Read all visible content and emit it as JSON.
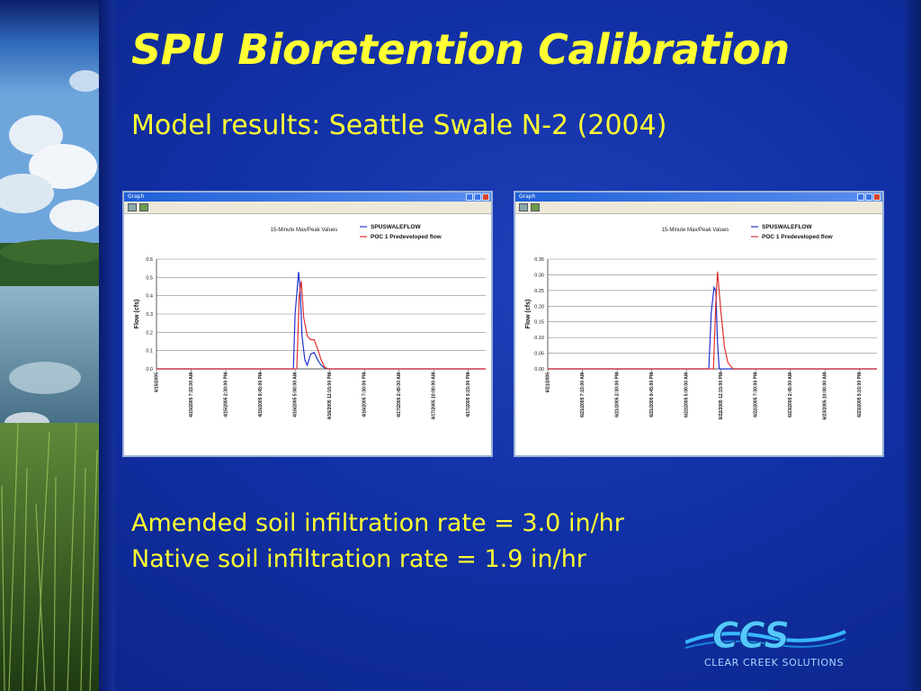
{
  "slide": {
    "title": "SPU Bioretention Calibration",
    "subtitle": "Model results: Seattle Swale N-2 (2004)",
    "rates": [
      "Amended soil infiltration rate = 3.0 in/hr",
      "Native soil infiltration rate = 1.9 in/hr"
    ],
    "logo_text": "CLEAR CREEK SOLUTIONS",
    "logo_mark": "CCS"
  },
  "colors": {
    "background": "#1230a6",
    "title": "#ffff33",
    "series_1": "#2233cc",
    "series_2": "#e03030"
  },
  "chart_data": [
    {
      "type": "line",
      "window_title": "Graph",
      "title": "15-Minute Max/Peak Values",
      "ylabel": "Flow (cfs)",
      "xlabel": "",
      "ylim": [
        0,
        0.6
      ],
      "yticks": [
        "0.0",
        "0.1",
        "0.2",
        "0.3",
        "0.4",
        "0.5",
        "0.6"
      ],
      "grid": true,
      "legend": "top-right",
      "xticks": [
        "4/15/2005",
        "4/15/2005 7:15:00 AM",
        "4/15/2005 2:30:00 PM",
        "4/15/2005 9:45:00 PM",
        "4/16/2005 5:00:00 AM",
        "4/16/2005 12:15:00 PM",
        "4/16/2005 7:30:00 PM",
        "4/17/2005 2:45:00 AM",
        "4/17/2005 10:00:00 AM",
        "4/17/2005 5:15:00 PM"
      ],
      "x_range": [
        0,
        9.5
      ],
      "series": [
        {
          "name": "SPUSWALEFLOW",
          "color": "#2233cc",
          "x": [
            0,
            3.95,
            4.0,
            4.1,
            4.15,
            4.2,
            4.28,
            4.35,
            4.45,
            4.55,
            4.65,
            4.75,
            4.85,
            4.95,
            9.5
          ],
          "y": [
            0,
            0,
            0.3,
            0.53,
            0.42,
            0.18,
            0.05,
            0.02,
            0.08,
            0.09,
            0.05,
            0.02,
            0.005,
            0,
            0
          ]
        },
        {
          "name": "POC 1 Predeveloped flow",
          "color": "#e03030",
          "x": [
            0,
            4.05,
            4.12,
            4.18,
            4.25,
            4.35,
            4.45,
            4.55,
            4.65,
            4.75,
            4.85,
            4.95,
            9.5
          ],
          "y": [
            0,
            0,
            0.4,
            0.48,
            0.28,
            0.18,
            0.16,
            0.16,
            0.11,
            0.05,
            0.01,
            0,
            0
          ]
        }
      ]
    },
    {
      "type": "line",
      "window_title": "Graph",
      "title": "15-Minute Max/Peak Values",
      "ylabel": "Flow (cfs)",
      "xlabel": "",
      "ylim": [
        0,
        0.35
      ],
      "yticks": [
        "0.00",
        "0.05",
        "0.10",
        "0.15",
        "0.20",
        "0.25",
        "0.30",
        "0.35"
      ],
      "grid": true,
      "legend": "top-right",
      "xticks": [
        "6/21/2005",
        "6/21/2005 7:15:00 AM",
        "6/21/2005 2:30:00 PM",
        "6/21/2005 9:45:00 PM",
        "6/22/2005 5:00:00 AM",
        "6/22/2005 12:15:00 PM",
        "6/22/2005 7:30:00 PM",
        "6/23/2005 2:45:00 AM",
        "6/23/2005 10:00:00 AM",
        "6/23/2005 5:15:00 PM"
      ],
      "x_range": [
        0,
        9.5
      ],
      "series": [
        {
          "name": "SPUSWALEFLOW",
          "color": "#2233cc",
          "x": [
            0,
            4.65,
            4.72,
            4.8,
            4.85,
            4.9,
            4.95,
            9.5
          ],
          "y": [
            0,
            0,
            0.18,
            0.26,
            0.25,
            0.08,
            0,
            0
          ]
        },
        {
          "name": "POC 1 Predeveloped flow",
          "color": "#e03030",
          "x": [
            0,
            4.78,
            4.85,
            4.9,
            5.0,
            5.1,
            5.2,
            5.35,
            9.5
          ],
          "y": [
            0,
            0,
            0.21,
            0.31,
            0.18,
            0.07,
            0.02,
            0,
            0
          ]
        }
      ]
    }
  ]
}
